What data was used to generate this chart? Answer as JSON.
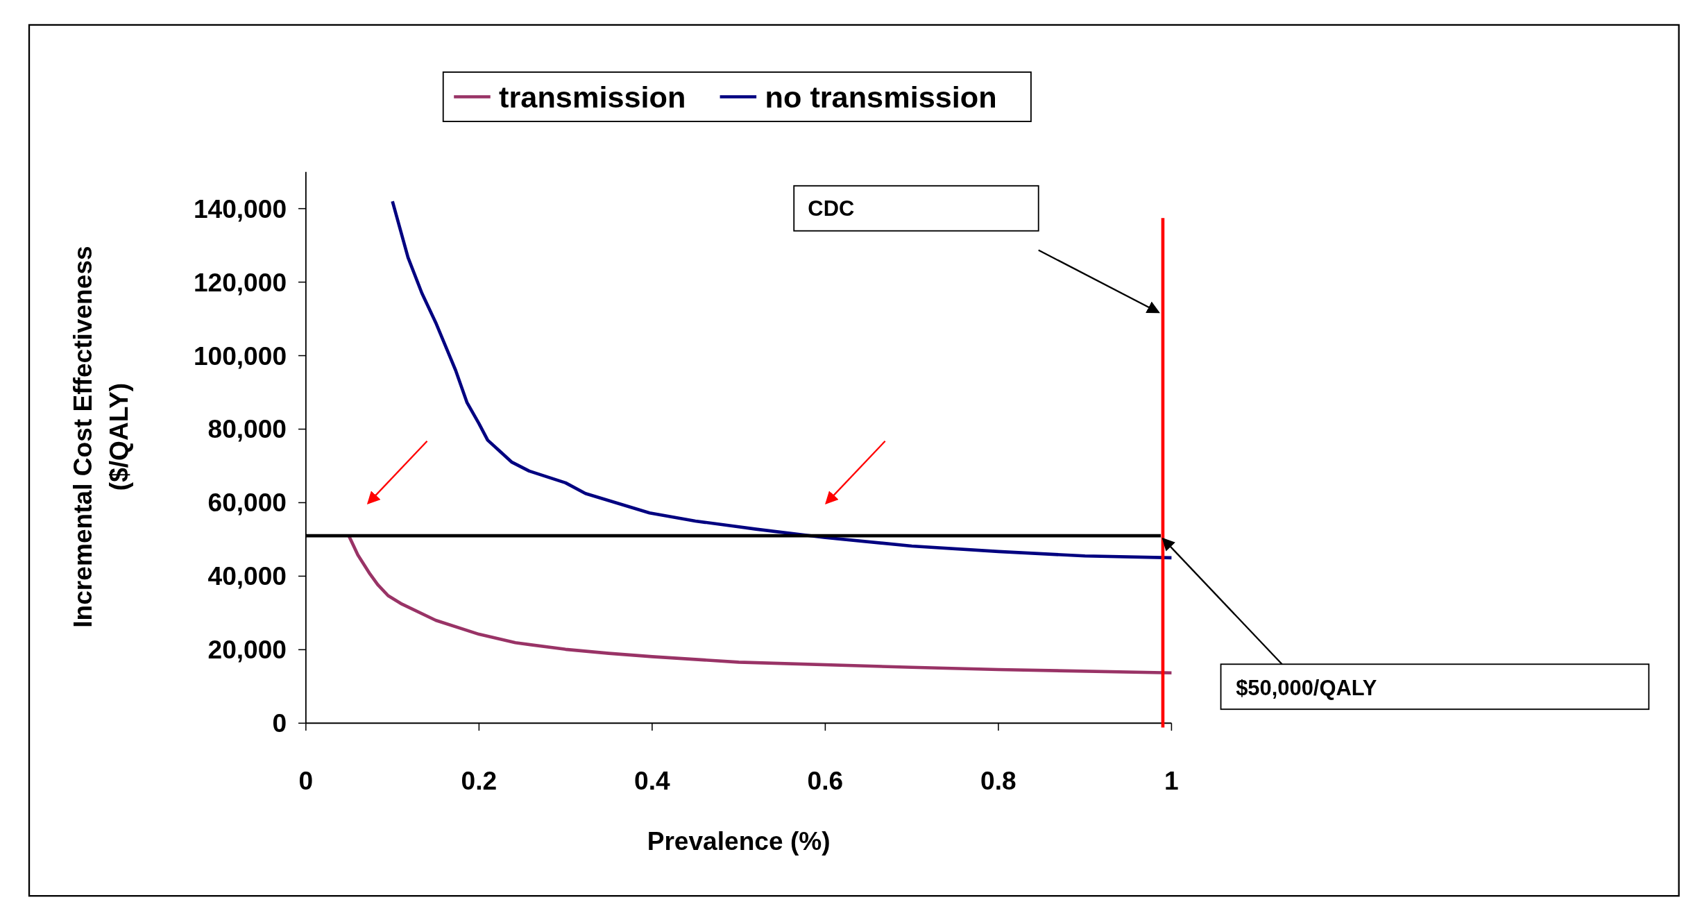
{
  "chart_data": {
    "type": "line",
    "xlabel": "Prevalence (%)",
    "ylabel": "Incremental Cost Effectiveness ($/QALY)",
    "xlim": [
      0,
      1
    ],
    "xticks": [
      0,
      0.2,
      0.4,
      0.6,
      0.8,
      1
    ],
    "ylim": [
      0,
      150000
    ],
    "yticks": [
      0,
      {
        "value": 20000,
        "label": "20,000"
      },
      {
        "value": 40000,
        "label": "40,000"
      },
      {
        "value": 60000,
        "label": "60,000"
      },
      {
        "value": 80000,
        "label": "80,000"
      },
      {
        "value": 100000,
        "label": "100,000"
      },
      {
        "value": 120000,
        "label": "120,000"
      },
      {
        "value": 140000,
        "label": "140,000"
      }
    ],
    "series": [
      {
        "name": "transmission",
        "color": "#993366",
        "x": [
          0.05,
          0.06,
          0.074,
          0.083,
          0.095,
          0.111,
          0.15,
          0.2,
          0.242,
          0.3,
          0.35,
          0.4,
          0.5,
          0.7,
          0.8,
          1
        ],
        "values": [
          50800,
          45800,
          40600,
          37700,
          34700,
          32400,
          28000,
          24200,
          21900,
          20100,
          19000,
          18100,
          16600,
          15200,
          14600,
          13700
        ]
      },
      {
        "name": "no transmission",
        "color": "#000080",
        "x": [
          0.1,
          0.118,
          0.134,
          0.15,
          0.173,
          0.186,
          0.2,
          0.21,
          0.224,
          0.238,
          0.258,
          0.3,
          0.323,
          0.397,
          0.45,
          0.52,
          0.6,
          0.7,
          0.8,
          0.9,
          1
        ],
        "values": [
          142000,
          126700,
          117000,
          109000,
          96000,
          87300,
          81500,
          77000,
          74000,
          71000,
          68600,
          65400,
          62500,
          57200,
          55000,
          52800,
          50500,
          48200,
          46700,
          45500,
          45000
        ]
      }
    ],
    "ref_lines": [
      {
        "axis": "y",
        "value": 51000,
        "label": "$50,000/QALY",
        "color": "#000000"
      },
      {
        "axis": "x",
        "value": 0.99,
        "color": "#ff0000"
      }
    ],
    "annotations": [
      "CDC"
    ],
    "legend": "top",
    "grid": false,
    "marker": "none",
    "line_style": "solid"
  }
}
